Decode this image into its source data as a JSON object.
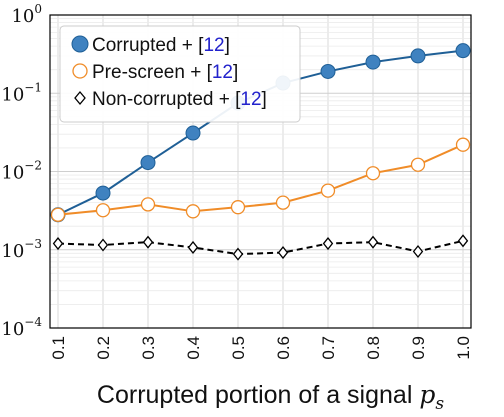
{
  "chart_data": {
    "type": "line",
    "yscale": "log",
    "ylim": [
      0.0001,
      1
    ],
    "xlim": [
      0.1,
      1.0
    ],
    "x": [
      0.1,
      0.2,
      0.3,
      0.4,
      0.5,
      0.6,
      0.7,
      0.8,
      0.9,
      1.0
    ],
    "x_tick_labels": [
      "0.1",
      "0.2",
      "0.3",
      "0.4",
      "0.5",
      "0.6",
      "0.7",
      "0.8",
      "0.9",
      "1.0"
    ],
    "y_tick_labels": [
      {
        "base": "10",
        "exp": "0",
        "value": 1
      },
      {
        "base": "10",
        "exp": "−1",
        "value": 0.1
      },
      {
        "base": "10",
        "exp": "−2",
        "value": 0.01
      },
      {
        "base": "10",
        "exp": "−3",
        "value": 0.001
      },
      {
        "base": "10",
        "exp": "−4",
        "value": 0.0001
      }
    ],
    "xlabel": "Corrupted portion of a signal",
    "xlabel_symbol": "p",
    "xlabel_subscript": "s",
    "grid": true,
    "legend_position": "top-left",
    "series": [
      {
        "name": "Corrupted + ",
        "ref": "12",
        "color": "#1f5f96",
        "marker": "filled-circle",
        "marker_color": "#3f82c0",
        "line": "solid",
        "values": [
          0.0028,
          0.0053,
          0.013,
          0.031,
          0.075,
          0.135,
          0.19,
          0.25,
          0.3,
          0.35
        ]
      },
      {
        "name": "Pre-screen + ",
        "ref": "12",
        "color": "#f08c28",
        "marker": "open-circle",
        "line": "solid",
        "values": [
          0.0028,
          0.0032,
          0.0038,
          0.0031,
          0.0035,
          0.004,
          0.0057,
          0.0095,
          0.0122,
          0.022
        ]
      },
      {
        "name": "Non-corrupted + ",
        "ref": "12",
        "color": "#000000",
        "marker": "open-diamond",
        "line": "dashed",
        "values": [
          0.0012,
          0.00115,
          0.00125,
          0.00107,
          0.00088,
          0.00092,
          0.0012,
          0.00125,
          0.00095,
          0.0013
        ]
      }
    ]
  }
}
